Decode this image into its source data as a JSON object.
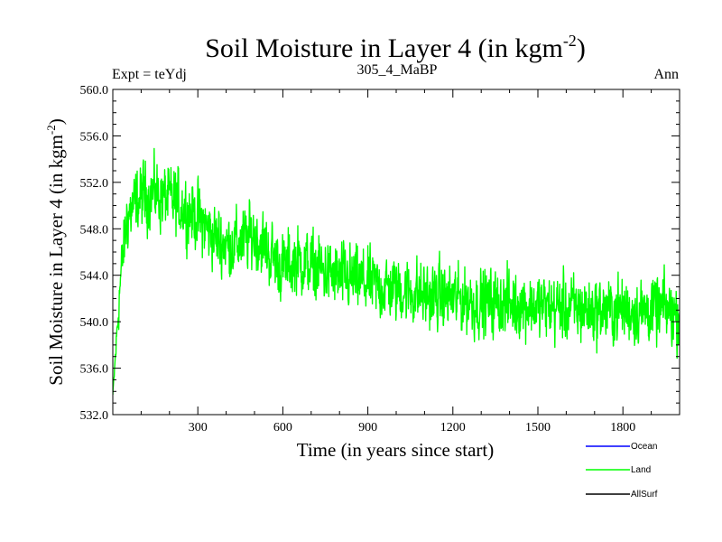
{
  "chart_data": {
    "type": "line",
    "title": "Soil Moisture in Layer 4 (in kgm",
    "title_sup": "-2",
    "title_end": ")",
    "subtitle_left": "Expt = teYdj",
    "subtitle_center": "305_4_MaBP",
    "subtitle_right": "Ann",
    "xlabel": "Time (in years since start)",
    "ylabel": "Soil Moisture in Layer 4 (in kgm",
    "ylabel_sup": "-2",
    "ylabel_end": ")",
    "xlim": [
      0,
      2000
    ],
    "ylim": [
      532.0,
      560.0
    ],
    "xticks": [
      300,
      600,
      900,
      1200,
      1500,
      1800
    ],
    "xtick_labels": [
      "300",
      "600",
      "900",
      "1200",
      "1500",
      "1800"
    ],
    "yticks": [
      532,
      536,
      540,
      544,
      548,
      552,
      556,
      560
    ],
    "ytick_labels": [
      "532.0",
      "536.0",
      "540.0",
      "544.0",
      "548.0",
      "552.0",
      "556.0",
      "560.0"
    ],
    "legend": [
      {
        "name": "Ocean",
        "color": "#0000ff"
      },
      {
        "name": "Land",
        "color": "#00ff00"
      },
      {
        "name": "AllSurf",
        "color": "#000000"
      }
    ],
    "series": [
      {
        "name": "Land",
        "color": "#00ff00",
        "x": [
          0,
          25,
          50,
          100,
          150,
          200,
          250,
          300,
          350,
          400,
          450,
          500,
          550,
          600,
          650,
          700,
          750,
          800,
          850,
          900,
          950,
          1000,
          1050,
          1100,
          1150,
          1200,
          1250,
          1300,
          1350,
          1400,
          1450,
          1500,
          1550,
          1600,
          1650,
          1700,
          1750,
          1800,
          1850,
          1900,
          1950,
          2000
        ],
        "mean": [
          533.5,
          543.0,
          549.0,
          550.8,
          551.0,
          550.5,
          549.8,
          549.0,
          547.5,
          546.6,
          546.8,
          547.5,
          546.0,
          544.6,
          545.3,
          544.8,
          544.3,
          543.8,
          543.6,
          543.3,
          543.0,
          542.8,
          542.6,
          542.3,
          542.2,
          542.0,
          541.8,
          541.6,
          541.6,
          541.5,
          541.5,
          541.3,
          541.2,
          541.2,
          541.1,
          541.0,
          541.0,
          541.0,
          541.0,
          541.0,
          541.0,
          540.5
        ],
        "amplitude": [
          0.5,
          3.0,
          3.5,
          3.5,
          3.5,
          3.5,
          3.5,
          3.5,
          3.5,
          3.5,
          3.5,
          3.5,
          3.5,
          3.5,
          3.5,
          3.5,
          3.5,
          3.5,
          3.5,
          3.5,
          3.5,
          3.5,
          3.5,
          3.5,
          3.5,
          3.5,
          3.5,
          3.5,
          3.5,
          3.5,
          3.5,
          3.5,
          3.5,
          3.5,
          3.5,
          3.5,
          3.5,
          3.5,
          3.5,
          3.5,
          3.5,
          3.5
        ],
        "points_per_year": 1,
        "range": [
          533.7,
          556.0
        ]
      }
    ]
  }
}
